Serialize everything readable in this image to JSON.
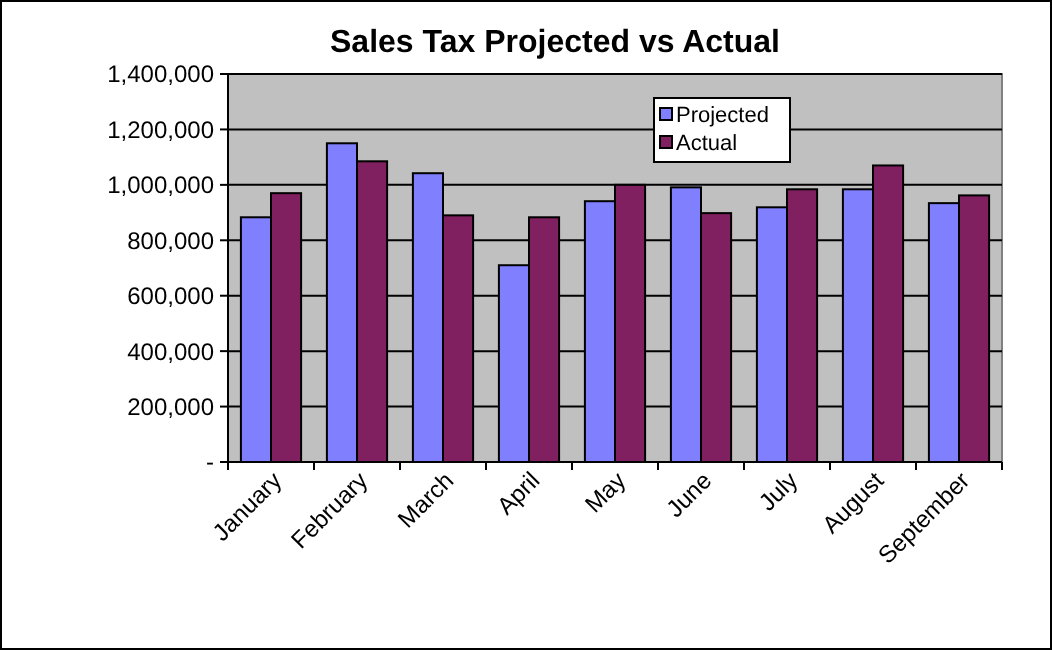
{
  "chart_data": {
    "type": "bar",
    "title": "Sales Tax  Projected vs Actual",
    "categories": [
      "January",
      "February",
      "March",
      "April",
      "May",
      "June",
      "July",
      "August",
      "September"
    ],
    "series": [
      {
        "name": "Projected",
        "color": "#8080ff",
        "values": [
          883000,
          1150000,
          1042000,
          710000,
          941000,
          991000,
          919000,
          984000,
          934000
        ]
      },
      {
        "name": "Actual",
        "color": "#802060",
        "values": [
          970000,
          1085000,
          890000,
          883000,
          1000000,
          898000,
          984000,
          1070000,
          962000
        ]
      }
    ],
    "ylim": [
      0,
      1400000
    ],
    "yticks": [
      {
        "value": 0,
        "label": "-"
      },
      {
        "value": 200000,
        "label": "200,000"
      },
      {
        "value": 400000,
        "label": "400,000"
      },
      {
        "value": 600000,
        "label": "600,000"
      },
      {
        "value": 800000,
        "label": "800,000"
      },
      {
        "value": 1000000,
        "label": "1,000,000"
      },
      {
        "value": 1200000,
        "label": "1,200,000"
      },
      {
        "value": 1400000,
        "label": "1,400,000"
      }
    ],
    "grid": "y",
    "legend": "top right"
  }
}
